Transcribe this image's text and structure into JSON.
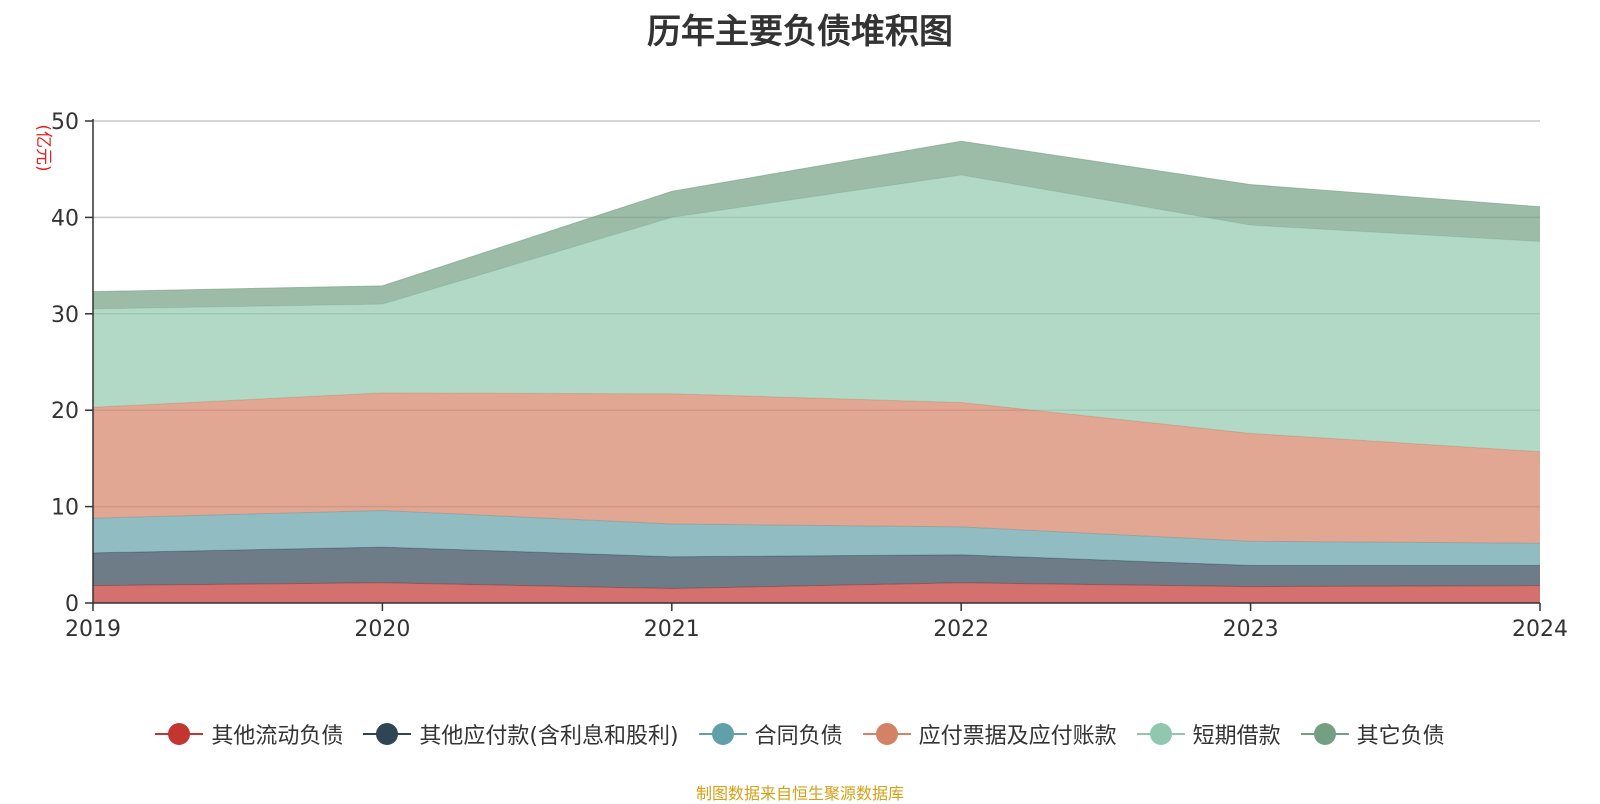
{
  "chart_data": {
    "type": "area",
    "stacked": true,
    "title": "历年主要负债堆积图",
    "ylabel": "(亿元)",
    "xlabel": "",
    "categories": [
      "2019",
      "2020",
      "2021",
      "2022",
      "2023",
      "2024"
    ],
    "ylim": [
      0,
      50
    ],
    "yticks": [
      0,
      10,
      20,
      30,
      40,
      50
    ],
    "grid": true,
    "legend_position": "bottom",
    "series": [
      {
        "name": "其他流动负债",
        "color": "#c23531",
        "values": [
          1.8,
          2.1,
          1.5,
          2.1,
          1.7,
          1.8
        ]
      },
      {
        "name": "其他应付款(含利息和股利)",
        "color": "#2f4554",
        "values": [
          3.4,
          3.7,
          3.3,
          2.9,
          2.2,
          2.1
        ]
      },
      {
        "name": "合同负债",
        "color": "#61a0a8",
        "values": [
          3.6,
          3.8,
          3.4,
          2.9,
          2.5,
          2.3
        ]
      },
      {
        "name": "应付票据及应付账款",
        "color": "#d48265",
        "values": [
          11.5,
          12.2,
          13.5,
          12.9,
          11.2,
          9.5
        ]
      },
      {
        "name": "短期借款",
        "color": "#91c7ae",
        "values": [
          10.2,
          9.2,
          18.3,
          23.6,
          21.6,
          21.8
        ]
      },
      {
        "name": "其它负债",
        "color": "#749f83",
        "values": [
          1.8,
          1.9,
          2.7,
          3.5,
          4.2,
          3.6
        ]
      }
    ]
  },
  "source": "制图数据来自恒生聚源数据库"
}
